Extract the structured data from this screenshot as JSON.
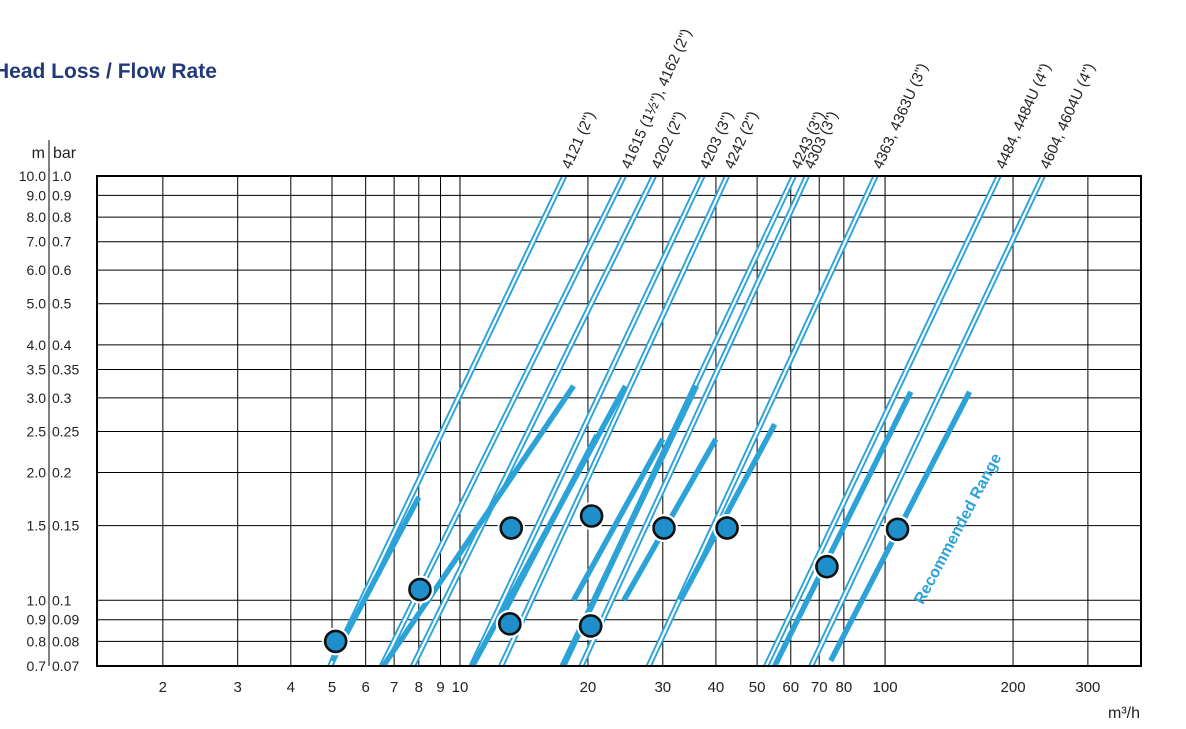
{
  "title": "Head Loss / Flow Rate",
  "colors": {
    "accent": "#2ba3d8",
    "title": "#223a7a",
    "marker_fill": "#1e8fca",
    "grid": "#000000"
  },
  "chart_data": {
    "type": "line",
    "title": "Head Loss / Flow Rate",
    "x_scale": "log",
    "y_scale": "log",
    "xlim": [
      1.4,
      400
    ],
    "ylim": [
      0.7,
      10
    ],
    "x_ticks": [
      {
        "value": 2,
        "label": "2"
      },
      {
        "value": 3,
        "label": "3"
      },
      {
        "value": 4,
        "label": "4"
      },
      {
        "value": 5,
        "label": "5"
      },
      {
        "value": 6,
        "label": "6"
      },
      {
        "value": 7,
        "label": "7"
      },
      {
        "value": 8,
        "label": "8"
      },
      {
        "value": 9,
        "label": "9"
      },
      {
        "value": 10,
        "label": "10"
      },
      {
        "value": 20,
        "label": "20"
      },
      {
        "value": 30,
        "label": "30"
      },
      {
        "value": 40,
        "label": "40"
      },
      {
        "value": 50,
        "label": "50"
      },
      {
        "value": 60,
        "label": "60"
      },
      {
        "value": 70,
        "label": "70"
      },
      {
        "value": 80,
        "label": "80"
      },
      {
        "value": 100,
        "label": "100"
      },
      {
        "value": 200,
        "label": "200"
      },
      {
        "value": 300,
        "label": "300"
      }
    ],
    "x_unit": "m³/h",
    "y_unit_left": "m",
    "y_unit_right": "bar",
    "y_ticks": [
      {
        "value": 10,
        "m": "10.0",
        "bar": "1.0"
      },
      {
        "value": 9,
        "m": "9.0",
        "bar": "0.9"
      },
      {
        "value": 8,
        "m": "8.0",
        "bar": "0.8"
      },
      {
        "value": 7,
        "m": "7.0",
        "bar": "0.7"
      },
      {
        "value": 6,
        "m": "6.0",
        "bar": "0.6"
      },
      {
        "value": 5,
        "m": "5.0",
        "bar": "0.5"
      },
      {
        "value": 4,
        "m": "4.0",
        "bar": "0.4"
      },
      {
        "value": 3.5,
        "m": "3.5",
        "bar": "0.35"
      },
      {
        "value": 3,
        "m": "3.0",
        "bar": "0.3"
      },
      {
        "value": 2.5,
        "m": "2.5",
        "bar": "0.25"
      },
      {
        "value": 2,
        "m": "2.0",
        "bar": "0.2"
      },
      {
        "value": 1.5,
        "m": "1.5",
        "bar": "0.15"
      },
      {
        "value": 1,
        "m": "1.0",
        "bar": "0.1"
      },
      {
        "value": 0.9,
        "m": "0.9",
        "bar": "0.09"
      },
      {
        "value": 0.8,
        "m": "0.8",
        "bar": "0.08"
      },
      {
        "value": 0.7,
        "m": "0.7",
        "bar": "0.07"
      }
    ],
    "series": [
      {
        "name": "4121 (2\")",
        "kind": "double",
        "points": [
          {
            "x": 4.95,
            "y": 0.7
          },
          {
            "x": 17.6,
            "y": 10
          }
        ],
        "recommended_range": [
          {
            "x": 5.0,
            "y": 0.72
          },
          {
            "x": 8.0,
            "y": 1.75
          }
        ],
        "marker": {
          "x": 5.1,
          "y": 0.8
        }
      },
      {
        "name": "41615 (1½\"), 4162 (2\")",
        "kind": "double",
        "points": [
          {
            "x": 6.55,
            "y": 0.7
          },
          {
            "x": 24.3,
            "y": 10
          }
        ]
      },
      {
        "name": "4202 (2\")",
        "kind": "double",
        "points": [
          {
            "x": 7.75,
            "y": 0.7
          },
          {
            "x": 28.6,
            "y": 10
          }
        ]
      },
      {
        "name": "4203 (3\")",
        "kind": "double",
        "points": [
          {
            "x": 10.65,
            "y": 0.7
          },
          {
            "x": 37.2,
            "y": 10
          }
        ]
      },
      {
        "name": "4242 (2\")",
        "kind": "double",
        "points": [
          {
            "x": 12.5,
            "y": 0.7
          },
          {
            "x": 42.5,
            "y": 10
          }
        ]
      },
      {
        "name": "4243 (3\")",
        "kind": "double",
        "points": [
          {
            "x": 17.5,
            "y": 0.7
          },
          {
            "x": 61.0,
            "y": 10
          }
        ]
      },
      {
        "name": "4303 (3\")",
        "kind": "double",
        "points": [
          {
            "x": 19.3,
            "y": 0.7
          },
          {
            "x": 65.5,
            "y": 10
          }
        ]
      },
      {
        "name": "4363, 4363U (3\")",
        "kind": "double",
        "points": [
          {
            "x": 27.8,
            "y": 0.7
          },
          {
            "x": 95.0,
            "y": 10
          }
        ]
      },
      {
        "name": "4484, 4484U (4\")",
        "kind": "double",
        "points": [
          {
            "x": 52.5,
            "y": 0.7
          },
          {
            "x": 185.0,
            "y": 10
          }
        ]
      },
      {
        "name": "4604, 4604U (4\")",
        "kind": "double",
        "points": [
          {
            "x": 67.0,
            "y": 0.7
          },
          {
            "x": 235.0,
            "y": 10
          }
        ]
      },
      {
        "name": "",
        "kind": "thick",
        "points": [
          {
            "x": 6.6,
            "y": 0.7
          },
          {
            "x": 18.5,
            "y": 3.2
          }
        ],
        "marker": {
          "x": 8.05,
          "y": 1.06
        }
      },
      {
        "name": "",
        "kind": "thick",
        "points": [
          {
            "x": 10.7,
            "y": 0.7
          },
          {
            "x": 24.5,
            "y": 3.2
          }
        ],
        "marker": {
          "x": 13.1,
          "y": 0.88
        }
      },
      {
        "name": "",
        "kind": "thick",
        "points": [
          {
            "x": 12.8,
            "y": 0.95
          },
          {
            "x": 21.0,
            "y": 2.45
          }
        ],
        "marker": {
          "x": 13.2,
          "y": 1.48
        }
      },
      {
        "name": "",
        "kind": "thick",
        "points": [
          {
            "x": 17.4,
            "y": 0.7
          },
          {
            "x": 36.0,
            "y": 3.2
          }
        ],
        "marker": {
          "x": 20.3,
          "y": 0.87
        }
      },
      {
        "name": "",
        "kind": "thick",
        "points": [
          {
            "x": 18.5,
            "y": 1.0
          },
          {
            "x": 30.0,
            "y": 2.4
          }
        ],
        "marker": {
          "x": 20.4,
          "y": 1.58
        }
      },
      {
        "name": "",
        "kind": "thick",
        "points": [
          {
            "x": 24.3,
            "y": 1.0
          },
          {
            "x": 40.0,
            "y": 2.4
          }
        ],
        "marker": {
          "x": 30.2,
          "y": 1.48
        }
      },
      {
        "name": "",
        "kind": "thick",
        "points": [
          {
            "x": 33.0,
            "y": 1.0
          },
          {
            "x": 55.0,
            "y": 2.6
          }
        ],
        "marker": {
          "x": 42.5,
          "y": 1.48
        }
      },
      {
        "name": "",
        "kind": "thick",
        "points": [
          {
            "x": 55.0,
            "y": 0.7
          },
          {
            "x": 115.0,
            "y": 3.1
          }
        ],
        "marker": {
          "x": 73.0,
          "y": 1.2
        }
      },
      {
        "name": "",
        "kind": "thick",
        "points": [
          {
            "x": 74.5,
            "y": 0.72
          },
          {
            "x": 158.0,
            "y": 3.1
          }
        ],
        "marker": {
          "x": 107.0,
          "y": 1.47
        }
      }
    ],
    "annotations": [
      {
        "text": "Recommended Range",
        "x": 115,
        "y": 1.0
      }
    ],
    "grid": true
  }
}
